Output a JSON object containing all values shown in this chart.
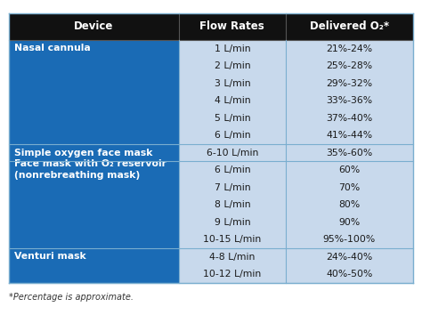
{
  "header": [
    "Device",
    "Flow Rates",
    "Delivered O₂*"
  ],
  "header_bg": "#111111",
  "header_text_color": "#ffffff",
  "header_fontsize": 8.5,
  "body_fontsize": 7.8,
  "footnote": "*Percentage is approximate.",
  "footnote_fontsize": 7.0,
  "fig_bg": "#ffffff",
  "rows": [
    {
      "device": "Nasal cannula",
      "flow_rates": [
        "1 L/min",
        "2 L/min",
        "3 L/min",
        "4 L/min",
        "5 L/min",
        "6 L/min"
      ],
      "delivered": [
        "21%-24%",
        "25%-28%",
        "29%-32%",
        "33%-36%",
        "37%-40%",
        "41%-44%"
      ],
      "device_bg": "#1a6bb5",
      "data_bg": "#c8d9ec",
      "device_valign": "top"
    },
    {
      "device": "Simple oxygen face mask",
      "flow_rates": [
        "6-10 L/min"
      ],
      "delivered": [
        "35%-60%"
      ],
      "device_bg": "#1a6bb5",
      "data_bg": "#c8d9ec",
      "device_valign": "center"
    },
    {
      "device": "Face mask with O₂ reservoir\n(nonrebreathing mask)",
      "flow_rates": [
        "6 L/min",
        "7 L/min",
        "8 L/min",
        "9 L/min",
        "10-15 L/min"
      ],
      "delivered": [
        "60%",
        "70%",
        "80%",
        "90%",
        "95%-100%"
      ],
      "device_bg": "#1a6bb5",
      "data_bg": "#c8d9ec",
      "device_valign": "top"
    },
    {
      "device": "Venturi mask",
      "flow_rates": [
        "4-8 L/min",
        "10-12 L/min"
      ],
      "delivered": [
        "24%-40%",
        "40%-50%"
      ],
      "device_bg": "#1a6bb5",
      "data_bg": "#c8d9ec",
      "device_valign": "top"
    }
  ],
  "col_splits": [
    0.0,
    0.42,
    0.685,
    1.0
  ],
  "border_color": "#7aaecf",
  "header_border_color": "#555555",
  "outer_border_color": "#7aaecf"
}
